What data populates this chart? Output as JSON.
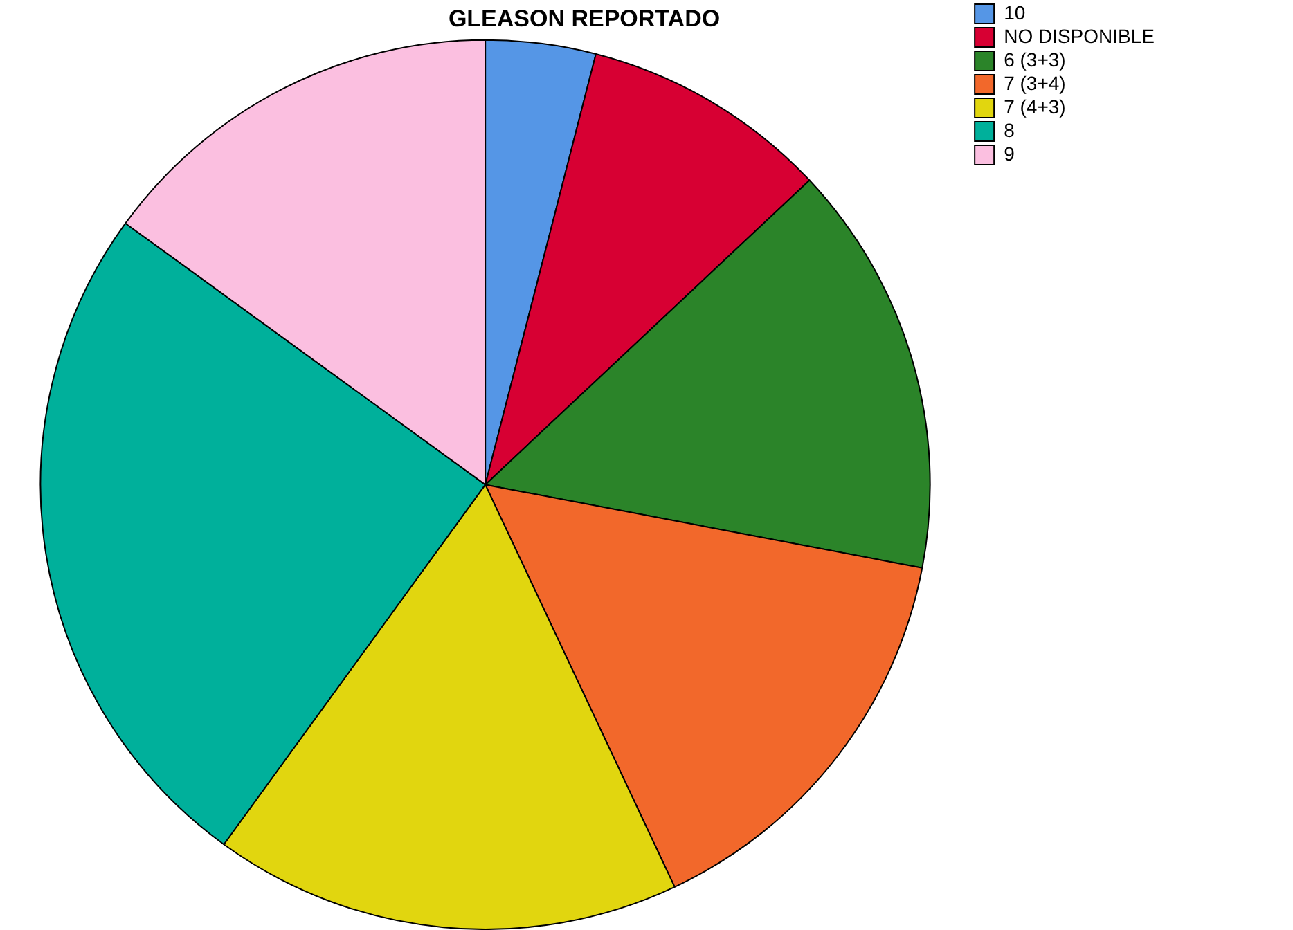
{
  "chart_data": {
    "type": "pie",
    "title": "GLEASON REPORTADO",
    "categories": [
      "10",
      "NO DISPONIBLE",
      "6 (3+3)",
      "7 (3+4)",
      "7 (4+3)",
      "8",
      "9"
    ],
    "values": [
      4,
      9,
      15,
      15,
      17,
      25,
      15
    ],
    "colors": [
      "#5596e6",
      "#d70033",
      "#2b8429",
      "#f2682b",
      "#e1d60f",
      "#00b09b",
      "#fbbfe0"
    ],
    "legend": "top right"
  }
}
